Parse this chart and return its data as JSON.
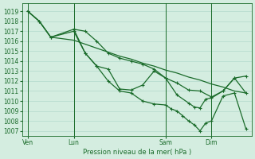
{
  "xlabel": "Pression niveau de la mer( hPa )",
  "bg_color": "#d4ede0",
  "grid_color": "#b8ddd0",
  "line_color": "#1a6b2a",
  "ylim": [
    1006.5,
    1019.8
  ],
  "yticks": [
    1007,
    1008,
    1009,
    1010,
    1011,
    1012,
    1013,
    1014,
    1015,
    1016,
    1017,
    1018,
    1019
  ],
  "xtick_labels": [
    "Ven",
    "Lun",
    "Sam",
    "Dim"
  ],
  "xtick_positions": [
    0,
    16,
    48,
    64
  ],
  "xlim": [
    -2,
    78
  ],
  "vlines": [
    0,
    16,
    48,
    64
  ],
  "series_smooth_x": [
    0,
    4,
    8,
    16,
    20,
    24,
    28,
    32,
    36,
    40,
    44,
    48,
    52,
    56,
    60,
    64,
    68,
    72,
    76
  ],
  "series_smooth_y": [
    1019.0,
    1018.0,
    1016.4,
    1016.1,
    1015.7,
    1015.3,
    1014.9,
    1014.5,
    1014.2,
    1013.8,
    1013.5,
    1013.1,
    1012.8,
    1012.4,
    1012.1,
    1011.7,
    1011.4,
    1011.0,
    1010.8
  ],
  "series_a_x": [
    0,
    4,
    8,
    16,
    20,
    24,
    28,
    32,
    36,
    40,
    44,
    48,
    52,
    56,
    60,
    64,
    68,
    72,
    76
  ],
  "series_a_y": [
    1019.0,
    1018.0,
    1016.4,
    1017.2,
    1017.0,
    1016.0,
    1014.8,
    1014.3,
    1014.0,
    1013.7,
    1013.2,
    1012.3,
    1011.8,
    1011.1,
    1011.0,
    1010.4,
    1011.0,
    1012.3,
    1012.5
  ],
  "series_b_x": [
    16,
    20,
    24,
    28,
    32,
    36,
    40,
    44,
    48,
    52,
    56,
    58,
    60,
    62,
    64,
    68,
    72,
    76
  ],
  "series_b_y": [
    1017.2,
    1014.8,
    1013.5,
    1013.2,
    1011.2,
    1011.1,
    1011.6,
    1013.0,
    1012.3,
    1010.6,
    1009.8,
    1009.4,
    1009.3,
    1010.2,
    1010.3,
    1011.0,
    1012.3,
    1010.8
  ],
  "series_c_x": [
    0,
    4,
    8,
    16,
    20,
    24,
    28,
    32,
    36,
    40,
    44,
    48,
    50,
    52,
    54,
    56,
    58,
    60,
    62,
    64,
    68,
    72,
    76
  ],
  "series_c_y": [
    1019.0,
    1018.0,
    1016.4,
    1017.0,
    1014.8,
    1013.5,
    1012.0,
    1011.0,
    1010.8,
    1010.0,
    1009.7,
    1009.6,
    1009.2,
    1009.0,
    1008.5,
    1008.0,
    1007.6,
    1007.0,
    1007.8,
    1008.0,
    1010.5,
    1010.8,
    1007.2
  ]
}
